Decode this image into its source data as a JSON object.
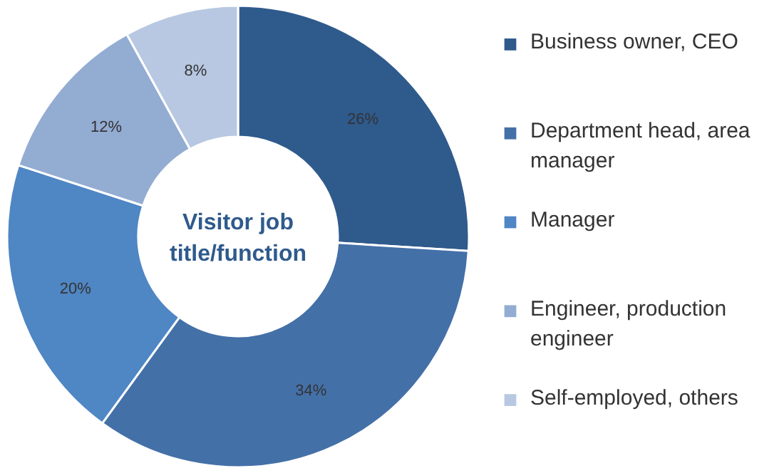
{
  "chart_data": {
    "type": "donut",
    "title": "Visitor job title/function",
    "categories": [
      "Business owner, CEO",
      "Department head, area manager",
      "Manager",
      "Engineer, production engineer",
      "Self-employed, others"
    ],
    "values": [
      26,
      34,
      20,
      12,
      8
    ],
    "value_labels": [
      "26%",
      "34%",
      "20%",
      "12%",
      "8%"
    ],
    "colors": [
      "#2f5a8c",
      "#4470a8",
      "#4f86c4",
      "#93acd2",
      "#b8c8e2"
    ],
    "legend": "right"
  }
}
